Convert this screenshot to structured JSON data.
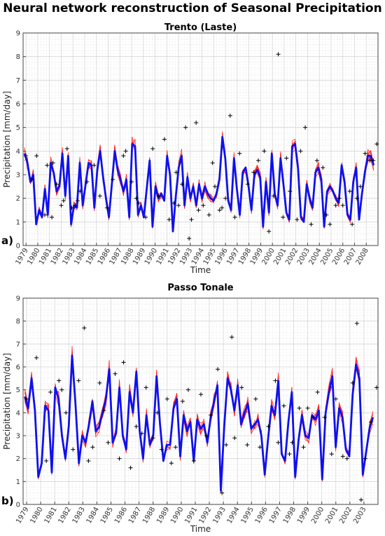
{
  "main_title": "Neural network reconstruction of Seasonal Precipitation",
  "chart_data": [
    {
      "type": "line",
      "panel_label": "a)",
      "title": "Trento (Laste)",
      "xlabel": "Time",
      "ylabel": "Precipitation [mm/day]",
      "ylim": [
        0,
        9
      ],
      "yticks": [
        0,
        1,
        2,
        3,
        4,
        5,
        6,
        7,
        8,
        9
      ],
      "xlim": [
        1978.75,
        2009.0
      ],
      "xtick_labels": [
        "1979",
        "1980",
        "1981",
        "1982",
        "1983",
        "1984",
        "1985",
        "1986",
        "1987",
        "1988",
        "1989",
        "1990",
        "1991",
        "1992",
        "1993",
        "1994",
        "1995",
        "1996",
        "1997",
        "1998",
        "1999",
        "2000",
        "2001",
        "2002",
        "2003",
        "2004",
        "2005",
        "2006",
        "2007",
        "2008"
      ],
      "grid": true,
      "series": [
        {
          "role": "ensemble-mean",
          "color": "#1010ee",
          "values": [
            3.9,
            3.5,
            2.7,
            3.0,
            0.9,
            1.5,
            1.2,
            2.4,
            1.3,
            3.5,
            3.1,
            2.3,
            2.5,
            3.9,
            2.1,
            3.8,
            0.9,
            1.7,
            1.6,
            3.5,
            1.7,
            2.6,
            3.5,
            3.4,
            1.6,
            3.2,
            4.0,
            2.9,
            2.0,
            1.2,
            2.6,
            4.0,
            3.2,
            2.8,
            2.3,
            2.8,
            1.2,
            4.3,
            4.2,
            1.3,
            1.7,
            1.2,
            2.4,
            3.6,
            0.8,
            2.5,
            2.0,
            2.2,
            1.9,
            3.8,
            3.0,
            0.6,
            2.1,
            3.3,
            3.8,
            1.7,
            2.9,
            2.0,
            2.5,
            1.7,
            2.6,
            2.0,
            2.5,
            2.2,
            2.0,
            1.9,
            2.2,
            2.8,
            4.6,
            3.7,
            1.9,
            1.5,
            3.7,
            2.4,
            1.3,
            3.1,
            3.3,
            2.5,
            1.5,
            3.0,
            3.2,
            2.9,
            0.8,
            2.7,
            1.4,
            3.9,
            2.2,
            1.7,
            3.7,
            2.6,
            1.4,
            1.1,
            4.2,
            4.3,
            3.3,
            1.2,
            1.0,
            2.6,
            2.0,
            1.6,
            3.1,
            3.3,
            2.8,
            0.8,
            2.3,
            2.5,
            2.3,
            2.0,
            1.8,
            3.4,
            2.7,
            1.3,
            1.1,
            2.7,
            3.3,
            1.1,
            2.2,
            3.1,
            3.8,
            3.8,
            3.4
          ]
        },
        {
          "role": "observed",
          "marker": "+",
          "color": "#000000",
          "points": [
            [
              1979.0,
              3.8
            ],
            [
              1979.5,
              2.8
            ],
            [
              1979.9,
              3.8
            ],
            [
              1980.6,
              1.3
            ],
            [
              1980.8,
              3.4
            ],
            [
              1981.2,
              1.2
            ],
            [
              1981.3,
              3.5
            ],
            [
              1981.6,
              2.6
            ],
            [
              1982.0,
              1.7
            ],
            [
              1982.2,
              1.9
            ],
            [
              1982.5,
              4.1
            ],
            [
              1982.9,
              1.6
            ],
            [
              1983.2,
              1.7
            ],
            [
              1983.4,
              1.9
            ],
            [
              1983.6,
              2.3
            ],
            [
              1984.2,
              2.7
            ],
            [
              1984.8,
              3.4
            ],
            [
              1985.3,
              2.1
            ],
            [
              1985.9,
              1.6
            ],
            [
              1986.4,
              2.8
            ],
            [
              1987.3,
              3.8
            ],
            [
              1987.5,
              4.0
            ],
            [
              1988.0,
              2.7
            ],
            [
              1988.4,
              2.0
            ],
            [
              1988.6,
              1.8
            ],
            [
              1989.2,
              1.2
            ],
            [
              1989.8,
              4.1
            ],
            [
              1990.3,
              2.1
            ],
            [
              1990.8,
              4.5
            ],
            [
              1991.2,
              1.1
            ],
            [
              1991.6,
              1.8
            ],
            [
              1991.8,
              3.1
            ],
            [
              1992.0,
              1.7
            ],
            [
              1992.3,
              2.6
            ],
            [
              1992.6,
              5.0
            ],
            [
              1992.9,
              0.3
            ],
            [
              1993.1,
              1.1
            ],
            [
              1993.5,
              5.2
            ],
            [
              1993.7,
              1.5
            ],
            [
              1994.1,
              1.7
            ],
            [
              1994.6,
              1.3
            ],
            [
              1994.9,
              3.5
            ],
            [
              1995.1,
              2.5
            ],
            [
              1995.5,
              1.5
            ],
            [
              1995.7,
              1.6
            ],
            [
              1996.0,
              2.0
            ],
            [
              1996.4,
              5.5
            ],
            [
              1996.8,
              1.2
            ],
            [
              1997.2,
              3.9
            ],
            [
              1997.9,
              2.6
            ],
            [
              1998.4,
              3.1
            ],
            [
              1998.8,
              3.6
            ],
            [
              1999.3,
              4.0
            ],
            [
              1999.7,
              0.6
            ],
            [
              2000.1,
              2.1
            ],
            [
              2000.5,
              8.1
            ],
            [
              2000.9,
              1.2
            ],
            [
              2001.2,
              3.7
            ],
            [
              2001.5,
              2.3
            ],
            [
              2002.1,
              1.1
            ],
            [
              2002.4,
              4.0
            ],
            [
              2002.8,
              5.0
            ],
            [
              2003.3,
              0.9
            ],
            [
              2003.8,
              3.6
            ],
            [
              2004.3,
              3.3
            ],
            [
              2004.6,
              1.3
            ],
            [
              2004.9,
              0.9
            ],
            [
              2005.4,
              1.7
            ],
            [
              2005.7,
              2.0
            ],
            [
              2006.0,
              1.7
            ],
            [
              2006.6,
              2.3
            ],
            [
              2006.8,
              0.9
            ],
            [
              2007.2,
              2.0
            ],
            [
              2007.5,
              2.5
            ],
            [
              2007.9,
              3.9
            ],
            [
              2008.3,
              3.6
            ],
            [
              2008.6,
              3.6
            ],
            [
              2008.9,
              4.3
            ]
          ]
        }
      ]
    },
    {
      "type": "line",
      "panel_label": "b)",
      "title": "Passo Tonale",
      "xlabel": "Time",
      "ylabel": "Precipitation [mm/day]",
      "ylim": [
        0,
        9
      ],
      "yticks": [
        0,
        1,
        2,
        3,
        4,
        5,
        6,
        7,
        8,
        9
      ],
      "xlim": [
        1978.75,
        2004.0
      ],
      "xtick_labels": [
        "1979",
        "1980",
        "1981",
        "1982",
        "1983",
        "1984",
        "1985",
        "1986",
        "1987",
        "1988",
        "1989",
        "1990",
        "1991",
        "1992",
        "1993",
        "1994",
        "1995",
        "1996",
        "1997",
        "1998",
        "1999",
        "2000",
        "2001",
        "2002",
        "2003"
      ],
      "grid": true,
      "series": [
        {
          "role": "ensemble-mean",
          "color": "#1010ee",
          "values": [
            4.7,
            4.2,
            5.5,
            4.1,
            1.2,
            1.8,
            4.3,
            4.1,
            1.4,
            5.1,
            4.6,
            3.0,
            2.0,
            3.4,
            6.5,
            4.4,
            1.8,
            3.0,
            2.7,
            3.5,
            4.5,
            3.2,
            3.4,
            4.0,
            4.6,
            5.9,
            2.7,
            3.1,
            5.1,
            3.0,
            2.4,
            4.9,
            4.0,
            5.8,
            3.2,
            2.0,
            3.9,
            2.6,
            3.0,
            5.6,
            3.5,
            1.9,
            2.6,
            2.6,
            4.2,
            4.6,
            2.1,
            3.9,
            3.2,
            3.6,
            1.9,
            3.7,
            3.3,
            3.5,
            2.7,
            3.8,
            4.5,
            5.2,
            0.6,
            3.4,
            5.5,
            5.0,
            4.1,
            5.2,
            3.5,
            4.0,
            4.4,
            3.3,
            3.5,
            3.7,
            3.0,
            1.3,
            2.9,
            4.3,
            3.9,
            5.4,
            2.2,
            1.9,
            3.6,
            4.9,
            1.2,
            2.8,
            3.9,
            3.0,
            2.9,
            3.9,
            3.7,
            4.1,
            1.1,
            4.0,
            4.9,
            5.6,
            2.5,
            4.2,
            3.8,
            2.4,
            2.1,
            4.8,
            6.1,
            5.5,
            1.3,
            2.3,
            3.3,
            3.8
          ]
        },
        {
          "role": "observed",
          "marker": "+",
          "color": "#000000",
          "points": [
            [
              1979.0,
              4.6
            ],
            [
              1979.7,
              6.4
            ],
            [
              1980.4,
              1.9
            ],
            [
              1980.7,
              4.9
            ],
            [
              1981.3,
              5.4
            ],
            [
              1981.5,
              5.0
            ],
            [
              1981.8,
              4.0
            ],
            [
              1982.3,
              2.4
            ],
            [
              1982.7,
              5.4
            ],
            [
              1983.1,
              7.7
            ],
            [
              1983.4,
              1.9
            ],
            [
              1983.7,
              2.5
            ],
            [
              1984.2,
              5.3
            ],
            [
              1984.5,
              4.1
            ],
            [
              1984.8,
              2.7
            ],
            [
              1985.3,
              5.7
            ],
            [
              1985.6,
              2.0
            ],
            [
              1985.9,
              6.2
            ],
            [
              1986.4,
              1.6
            ],
            [
              1986.8,
              3.4
            ],
            [
              1987.2,
              3.1
            ],
            [
              1987.5,
              5.1
            ],
            [
              1988.0,
              2.9
            ],
            [
              1988.3,
              4.0
            ],
            [
              1988.6,
              2.4
            ],
            [
              1989.0,
              4.6
            ],
            [
              1989.3,
              1.8
            ],
            [
              1989.6,
              2.5
            ],
            [
              1990.1,
              4.5
            ],
            [
              1990.5,
              5.0
            ],
            [
              1990.9,
              1.9
            ],
            [
              1991.4,
              4.8
            ],
            [
              1991.8,
              3.0
            ],
            [
              1992.1,
              3.9
            ],
            [
              1992.6,
              5.9
            ],
            [
              1992.9,
              0.5
            ],
            [
              1993.2,
              2.6
            ],
            [
              1993.6,
              7.3
            ],
            [
              1993.8,
              2.9
            ],
            [
              1994.3,
              5.1
            ],
            [
              1994.7,
              2.6
            ],
            [
              1995.3,
              4.6
            ],
            [
              1995.6,
              2.5
            ],
            [
              1996.2,
              3.4
            ],
            [
              1996.7,
              5.4
            ],
            [
              1996.9,
              2.7
            ],
            [
              1997.3,
              4.3
            ],
            [
              1997.7,
              2.2
            ],
            [
              1997.9,
              2.7
            ],
            [
              1998.4,
              4.2
            ],
            [
              1998.7,
              2.5
            ],
            [
              1999.0,
              4.2
            ],
            [
              1999.4,
              3.8
            ],
            [
              1999.7,
              4.9
            ],
            [
              2000.2,
              3.8
            ],
            [
              2000.7,
              2.2
            ],
            [
              2001.0,
              4.6
            ],
            [
              2001.5,
              2.1
            ],
            [
              2001.8,
              2.0
            ],
            [
              2002.2,
              5.3
            ],
            [
              2002.5,
              7.9
            ],
            [
              2002.8,
              0.2
            ],
            [
              2003.1,
              2.0
            ],
            [
              2003.5,
              3.6
            ],
            [
              2003.9,
              5.1
            ]
          ]
        }
      ]
    }
  ]
}
